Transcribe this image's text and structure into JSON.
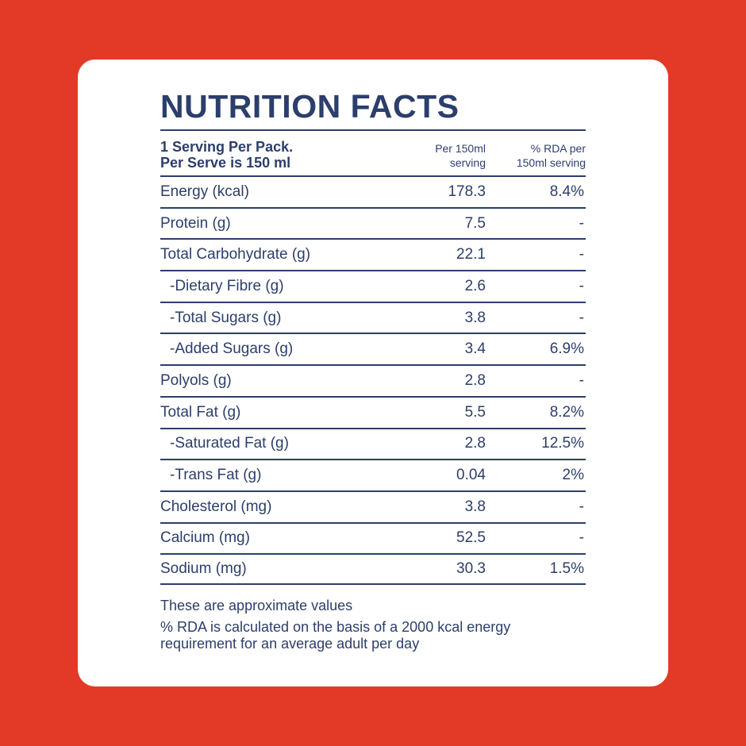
{
  "title": "NUTRITION FACTS",
  "header": {
    "serving_line1": "1 Serving Per Pack.",
    "serving_line2": "Per Serve is 150 ml",
    "col1_line1": "Per 150ml",
    "col1_line2": "serving",
    "col2_line1": "% RDA per",
    "col2_line2": "150ml serving"
  },
  "rows": [
    {
      "name": "Energy (kcal)",
      "per_serving": "178.3",
      "rda": "8.4%",
      "sub": false
    },
    {
      "name": "Protein (g)",
      "per_serving": "7.5",
      "rda": "-",
      "sub": false
    },
    {
      "name": "Total Carbohydrate (g)",
      "per_serving": "22.1",
      "rda": "-",
      "sub": false
    },
    {
      "name": "-Dietary Fibre (g)",
      "per_serving": "2.6",
      "rda": "-",
      "sub": true
    },
    {
      "name": "-Total Sugars (g)",
      "per_serving": "3.8",
      "rda": "-",
      "sub": true
    },
    {
      "name": "-Added Sugars (g)",
      "per_serving": "3.4",
      "rda": "6.9%",
      "sub": true
    },
    {
      "name": "Polyols (g)",
      "per_serving": "2.8",
      "rda": "-",
      "sub": false
    },
    {
      "name": "Total Fat (g)",
      "per_serving": "5.5",
      "rda": "8.2%",
      "sub": false
    },
    {
      "name": "-Saturated Fat (g)",
      "per_serving": "2.8",
      "rda": "12.5%",
      "sub": true
    },
    {
      "name": "-Trans Fat (g)",
      "per_serving": "0.04",
      "rda": "2%",
      "sub": true
    },
    {
      "name": "Cholesterol (mg)",
      "per_serving": "3.8",
      "rda": "-",
      "sub": false
    },
    {
      "name": "Calcium (mg)",
      "per_serving": "52.5",
      "rda": "-",
      "sub": false
    },
    {
      "name": "Sodium (mg)",
      "per_serving": "30.3",
      "rda": "1.5%",
      "sub": false
    }
  ],
  "footnotes": {
    "approx": "These are approximate values",
    "rda_line1": "%  RDA is calculated on the basis of a 2000 kcal energy",
    "rda_line2": "requirement for an average adult per day"
  },
  "colors": {
    "background": "#e23a27",
    "card": "#ffffff",
    "text": "#2c3e6b"
  }
}
